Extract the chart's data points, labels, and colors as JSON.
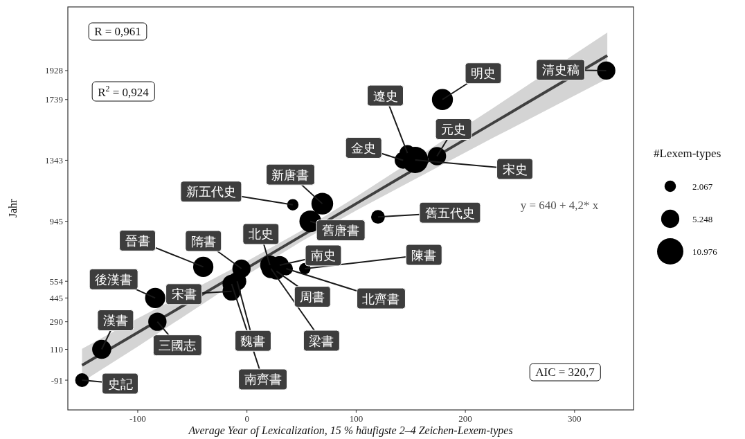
{
  "chart_data": {
    "type": "bubble",
    "xlabel": "Average Year of Lexicalization, 15 % häufigste 2–4 Zeichen-Lexem-types",
    "ylabel": "Jahr",
    "legend_title": "#Lexem-types",
    "xlim": [
      -164,
      354
    ],
    "xticks": [
      -100,
      0,
      100,
      200,
      300
    ],
    "ylim": [
      -285,
      2343
    ],
    "yticks": [
      -91,
      110,
      290,
      445,
      554,
      945,
      1343,
      1739,
      1928
    ],
    "size_legend": [
      {
        "value": 2067,
        "label": "2.067"
      },
      {
        "value": 5248,
        "label": "5.248"
      },
      {
        "value": 10976,
        "label": "10.976"
      }
    ],
    "series": [
      {
        "type": "line",
        "color": "#404040",
        "x": [
          -151,
          -100,
          0,
          50,
          100,
          150,
          225,
          240,
          330
        ],
        "values": [
          6,
          220,
          640,
          850,
          1060,
          1270,
          1585,
          1648,
          2026
        ],
        "lower": [
          -102,
          128,
          595,
          815,
          1015,
          1205,
          1488,
          1543,
          1876
        ],
        "upper": [
          114,
          312,
          685,
          885,
          1105,
          1335,
          1682,
          1753,
          2176
        ]
      },
      {
        "color": "#000000",
        "x": [
          -151,
          -133,
          -82,
          -84,
          -40,
          -14,
          -14,
          -9,
          -5,
          22,
          27,
          21,
          30,
          36,
          53,
          58,
          120,
          42,
          69,
          154,
          147,
          143,
          174,
          179,
          329
        ],
        "values": [
          -91,
          110,
          290,
          445,
          648,
          488,
          537,
          554,
          636,
          636,
          620,
          659,
          659,
          636,
          636,
          945,
          974,
          1053,
          1060,
          1345,
          1390,
          1343,
          1370,
          1739,
          1928
        ],
        "sizes": [
          3000,
          5800,
          5300,
          6500,
          6500,
          5300,
          5300,
          5300,
          5300,
          5800,
          4500,
          6000,
          5300,
          2800,
          2067,
          7500,
          3000,
          2067,
          7500,
          10976,
          4000,
          4500,
          5300,
          7000,
          5300
        ]
      }
    ],
    "annotations": [
      "R = 0,961",
      "R$^{2}$ = 0,924",
      "y = 640 + 4,2* x",
      "AIC = 320,7",
      {
        "text": "史記",
        "x": -151,
        "y": -91
      },
      {
        "text": "漢書",
        "x": -133,
        "y": 110
      },
      {
        "text": "三國志",
        "x": -82,
        "y": 290
      },
      {
        "text": "後漢書",
        "x": -84,
        "y": 445
      },
      {
        "text": "晉書",
        "x": -40,
        "y": 648
      },
      {
        "text": "宋書",
        "x": -14,
        "y": 488
      },
      {
        "text": "南齊書",
        "x": -14,
        "y": 537
      },
      {
        "text": "魏書",
        "x": -9,
        "y": 554
      },
      {
        "text": "隋書",
        "x": -5,
        "y": 636
      },
      {
        "text": "梁書",
        "x": 22,
        "y": 636
      },
      {
        "text": "周書",
        "x": 27,
        "y": 620
      },
      {
        "text": "北史",
        "x": 21,
        "y": 659
      },
      {
        "text": "南史",
        "x": 30,
        "y": 659
      },
      {
        "text": "北齊書",
        "x": 36,
        "y": 636
      },
      {
        "text": "陳書",
        "x": 53,
        "y": 636
      },
      {
        "text": "舊唐書",
        "x": 58,
        "y": 945
      },
      {
        "text": "舊五代史",
        "x": 120,
        "y": 974
      },
      {
        "text": "新五代史",
        "x": 42,
        "y": 1053
      },
      {
        "text": "新唐書",
        "x": 69,
        "y": 1060
      },
      {
        "text": "宋史",
        "x": 154,
        "y": 1345
      },
      {
        "text": "遼史",
        "x": 147,
        "y": 1390
      },
      {
        "text": "金史",
        "x": 143,
        "y": 1343
      },
      {
        "text": "元史",
        "x": 174,
        "y": 1370
      },
      {
        "text": "明史",
        "x": 179,
        "y": 1739
      },
      {
        "text": "清史稿",
        "x": 329,
        "y": 1928
      }
    ]
  }
}
